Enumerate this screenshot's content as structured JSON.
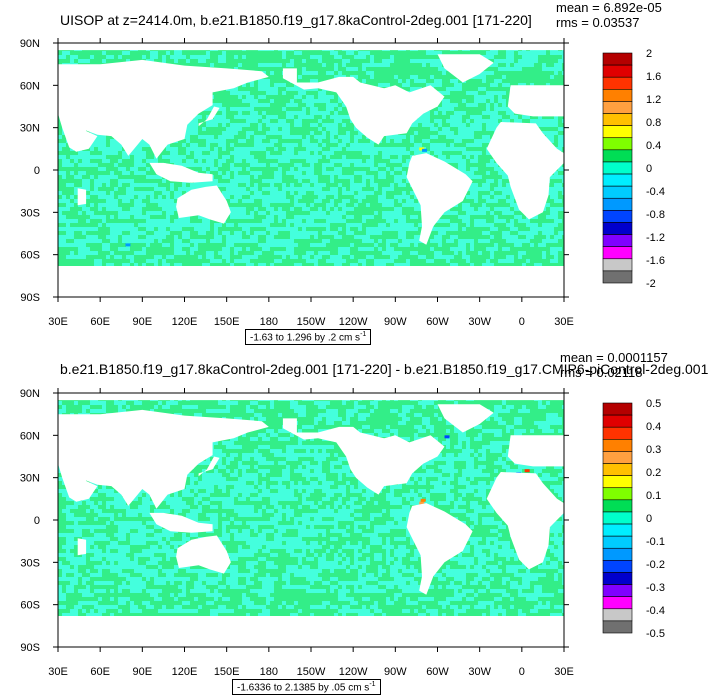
{
  "chart_data": [
    {
      "type": "heatmap",
      "title": "UISOP at z=2414.0m, b.e21.B1850.f19_g17.8kaControl-2deg.001 [171-220]",
      "stats": {
        "mean": "mean = 6.892e-05",
        "rms": "rms = 0.03537"
      },
      "range_label": "-1.63 to 1.296 by .2 cm s",
      "range_unit_exp": "-1",
      "x_tick_labels": [
        "30E",
        "60E",
        "90E",
        "120E",
        "150E",
        "180",
        "150W",
        "120W",
        "90W",
        "60W",
        "30W",
        "0",
        "30E"
      ],
      "y_tick_labels": [
        "90N",
        "60N",
        "30N",
        "0",
        "30S",
        "60S",
        "90S"
      ],
      "colorbar_labels": [
        "2",
        "1.6",
        "1.2",
        "0.8",
        "0.4",
        "0",
        "-0.4",
        "-0.8",
        "-1.2",
        "-1.6",
        "-2"
      ],
      "colorbar_colors": [
        "#b40000",
        "#e00000",
        "#ff3300",
        "#ff8000",
        "#ffa040",
        "#ffc000",
        "#ffff00",
        "#7fff00",
        "#00dd55",
        "#00ffcc",
        "#00eeff",
        "#00ccff",
        "#0099ff",
        "#0044ff",
        "#0000cc",
        "#8000ff",
        "#ff00ff",
        "#c8c8c8",
        "#707070"
      ]
    },
    {
      "type": "heatmap",
      "title": "b.e21.B1850.f19_g17.8kaControl-2deg.001 [171-220] - b.e21.B1850.f19_g17.CMIP6-piControl-2deg.001",
      "stats": {
        "mean": "mean = 0.0001157",
        "rms": "rms = 0.02118"
      },
      "range_label": "-1.6336 to 2.1385 by .05 cm s",
      "range_unit_exp": "-1",
      "x_tick_labels": [
        "30E",
        "60E",
        "90E",
        "120E",
        "150E",
        "180",
        "150W",
        "120W",
        "90W",
        "60W",
        "30W",
        "0",
        "30E"
      ],
      "y_tick_labels": [
        "90N",
        "60N",
        "30N",
        "0",
        "30S",
        "60S",
        "90S"
      ],
      "colorbar_labels": [
        "0.5",
        "0.4",
        "0.3",
        "0.2",
        "0.1",
        "0",
        "-0.1",
        "-0.2",
        "-0.3",
        "-0.4",
        "-0.5"
      ],
      "colorbar_colors": [
        "#b40000",
        "#e00000",
        "#ff3300",
        "#ff8000",
        "#ffa040",
        "#ffc000",
        "#ffff00",
        "#7fff00",
        "#00dd55",
        "#00ffcc",
        "#00eeff",
        "#00ccff",
        "#0099ff",
        "#0044ff",
        "#0000cc",
        "#8000ff",
        "#ff00ff",
        "#c8c8c8",
        "#707070"
      ]
    }
  ],
  "colors": {
    "ocean_main": "#33ee88",
    "ocean_alt": "#44ffdd",
    "land": "#ffffff"
  }
}
